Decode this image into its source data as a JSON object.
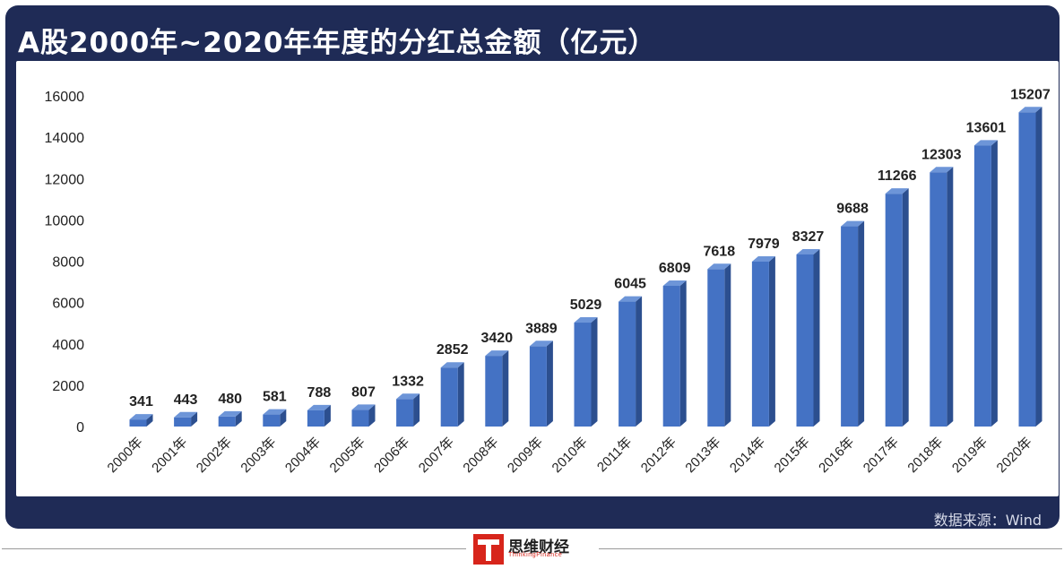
{
  "header": {
    "title": "A股2000年~2020年年度的分红总金额（亿元）"
  },
  "footer": {
    "source": "数据来源：Wind",
    "brand_name": "思维财经",
    "brand_en": "ThinkingFinance",
    "brand_color": "#d7251b"
  },
  "colors": {
    "frame": "#1f2b56",
    "bar": "#4472c4",
    "bar_side": "#2c4f8f",
    "bar_top": "#6d95d8"
  },
  "chart_data": {
    "type": "bar",
    "title": "A股2000年~2020年年度的分红总金额（亿元）",
    "categories": [
      "2000年",
      "2001年",
      "2002年",
      "2003年",
      "2004年",
      "2005年",
      "2006年",
      "2007年",
      "2008年",
      "2009年",
      "2010年",
      "2011年",
      "2012年",
      "2013年",
      "2014年",
      "2015年",
      "2016年",
      "2017年",
      "2018年",
      "2019年",
      "2020年"
    ],
    "values": [
      341,
      443,
      480,
      581,
      788,
      807,
      1332,
      2852,
      3420,
      3889,
      5029,
      6045,
      6809,
      7618,
      7979,
      8327,
      9688,
      11266,
      12303,
      13601,
      15207
    ],
    "yticks": [
      0,
      2000,
      4000,
      6000,
      8000,
      10000,
      12000,
      14000,
      16000
    ],
    "ylim": [
      0,
      16000
    ],
    "xlabel": "",
    "ylabel": "",
    "grid": false,
    "legend": "none"
  }
}
